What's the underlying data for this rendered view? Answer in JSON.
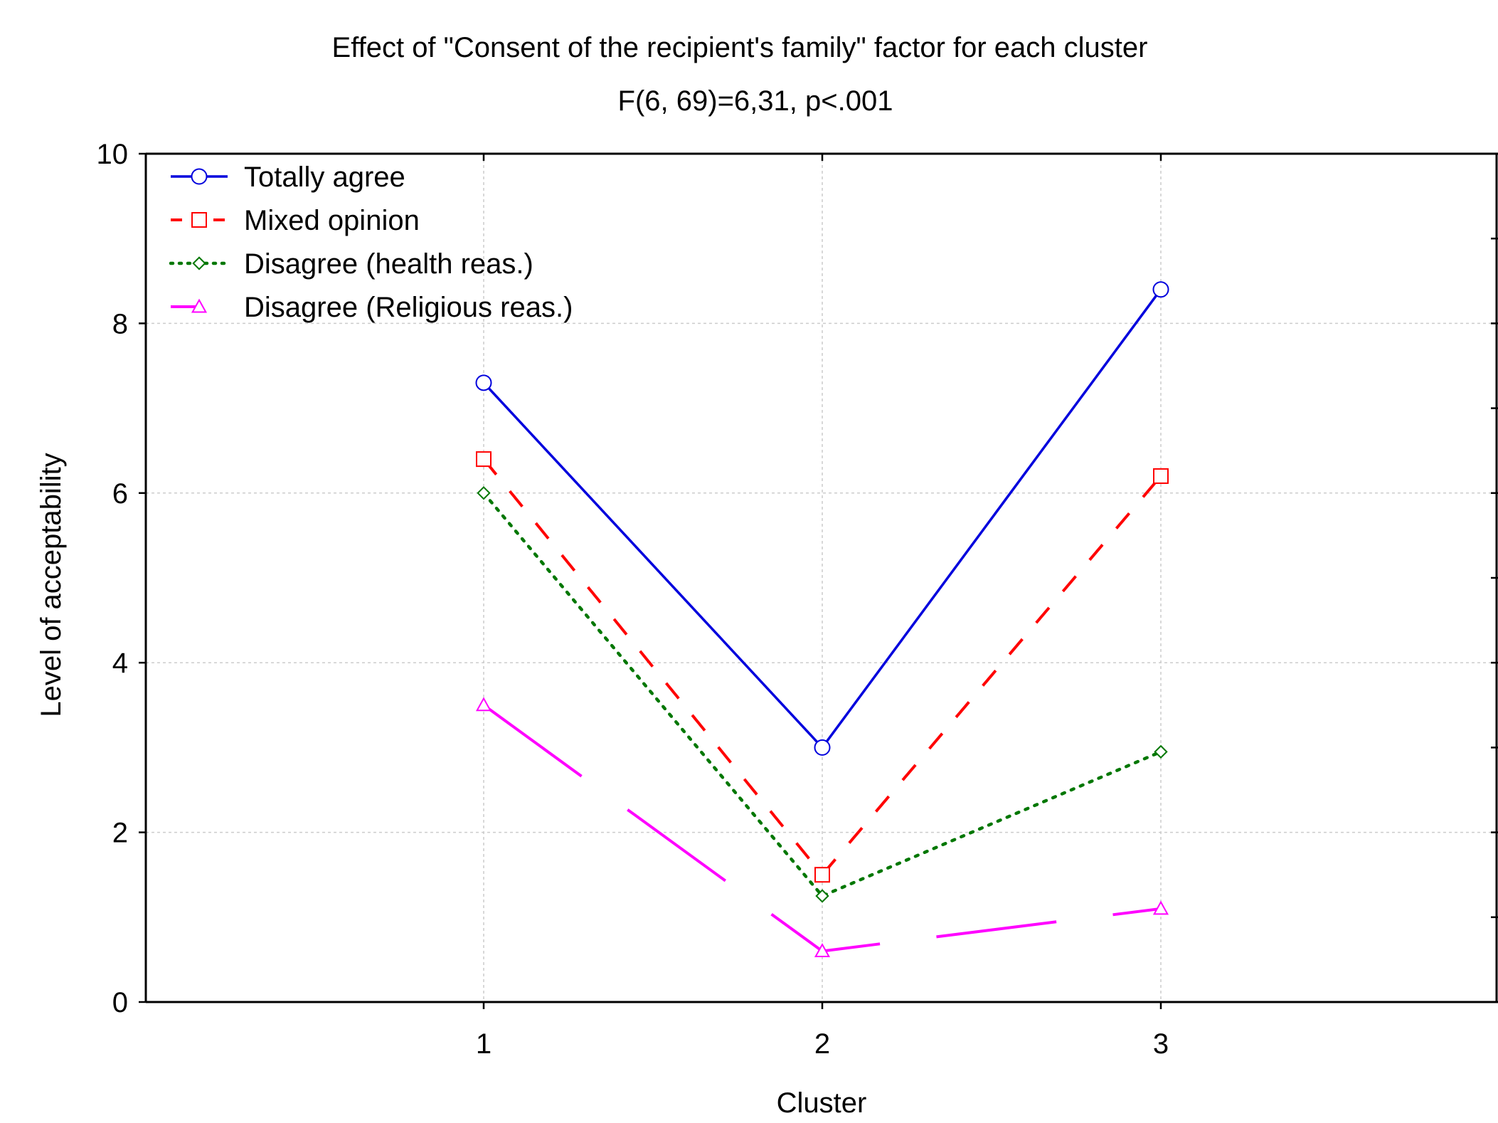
{
  "chart_data": {
    "type": "line",
    "title": "Effect of \"Consent of the recipient's family\" factor for each cluster",
    "subtitle": "F(6, 69)=6,31, p<.001",
    "xlabel": "Cluster",
    "ylabel": "Level of acceptability",
    "categories": [
      "1",
      "2",
      "3"
    ],
    "ylim": [
      0,
      10
    ],
    "yticks": [
      "0",
      "2",
      "4",
      "6",
      "8",
      "10"
    ],
    "grid": true,
    "legend_position": "top-left",
    "series": [
      {
        "name": "Totally agree",
        "values": [
          7.3,
          3.0,
          8.4
        ],
        "color": "#0000dd",
        "marker": "circle",
        "dash": "solid"
      },
      {
        "name": "Mixed opinion",
        "values": [
          6.4,
          1.5,
          6.2
        ],
        "color": "#ff0000",
        "marker": "square",
        "dash": "dashed"
      },
      {
        "name": "Disagree (health reas.)",
        "values": [
          6.0,
          1.25,
          2.95
        ],
        "color": "#007700",
        "marker": "diamond",
        "dash": "dotted"
      },
      {
        "name": "Disagree (Religious reas.)",
        "values": [
          3.5,
          0.6,
          1.1
        ],
        "color": "#ff00ff",
        "marker": "triangle",
        "dash": "longdash"
      }
    ]
  }
}
